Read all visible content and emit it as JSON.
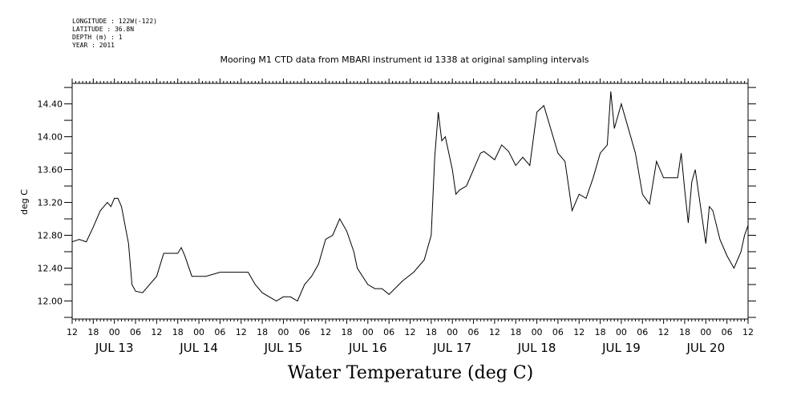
{
  "header": {
    "lines": [
      "LONGITUDE : 122W(-122)",
      "LATITUDE : 36.8N",
      "DEPTH (m) : 1",
      "YEAR : 2011"
    ]
  },
  "chart_data": {
    "type": "line",
    "title": "Mooring M1 CTD data from MBARI instrument id 1338 at original sampling intervals",
    "footer_title": "Water Temperature (deg C)",
    "ylabel": "deg C",
    "xlabel": "",
    "ylim": [
      11.78,
      14.65
    ],
    "yticks": [
      12.0,
      12.4,
      12.8,
      13.2,
      13.6,
      14.0,
      14.4
    ],
    "ytick_labels": [
      "12.00",
      "12.40",
      "12.80",
      "13.20",
      "13.60",
      "14.00",
      "14.40"
    ],
    "xlim": [
      "2011-07-12 12:00",
      "2011-07-20 12:00"
    ],
    "hour_tick_labels": [
      "12",
      "18",
      "00",
      "06",
      "12",
      "18",
      "00",
      "06",
      "12",
      "18",
      "00",
      "06",
      "12",
      "18",
      "00",
      "06",
      "12",
      "18",
      "00",
      "06",
      "12",
      "18",
      "00",
      "06",
      "12",
      "18",
      "00",
      "06",
      "12",
      "18",
      "00",
      "06",
      "12"
    ],
    "date_labels": [
      "JUL 13",
      "JUL 14",
      "JUL 15",
      "JUL 16",
      "JUL 17",
      "JUL 18",
      "JUL 19",
      "JUL 20"
    ],
    "grid": false,
    "series": [
      {
        "x": [
          "2011-07-12 12:00",
          "2011-07-12 14:00",
          "2011-07-12 16:00",
          "2011-07-12 18:00",
          "2011-07-12 20:00",
          "2011-07-12 21:00",
          "2011-07-12 22:00",
          "2011-07-12 23:00",
          "2011-07-13 00:00",
          "2011-07-13 01:00",
          "2011-07-13 02:00",
          "2011-07-13 04:00",
          "2011-07-13 05:00",
          "2011-07-13 06:00",
          "2011-07-13 08:00",
          "2011-07-13 12:00",
          "2011-07-13 14:00",
          "2011-07-13 18:00",
          "2011-07-13 19:00",
          "2011-07-13 20:00",
          "2011-07-13 22:00",
          "2011-07-14 02:00",
          "2011-07-14 06:00",
          "2011-07-14 10:00",
          "2011-07-14 14:00",
          "2011-07-14 16:00",
          "2011-07-14 18:00",
          "2011-07-14 22:00",
          "2011-07-15 00:00",
          "2011-07-15 02:00",
          "2011-07-15 04:00",
          "2011-07-15 06:00",
          "2011-07-15 08:00",
          "2011-07-15 10:00",
          "2011-07-15 12:00",
          "2011-07-15 14:00",
          "2011-07-15 16:00",
          "2011-07-15 18:00",
          "2011-07-15 20:00",
          "2011-07-15 21:00",
          "2011-07-16 00:00",
          "2011-07-16 02:00",
          "2011-07-16 04:00",
          "2011-07-16 06:00",
          "2011-07-16 10:00",
          "2011-07-16 13:00",
          "2011-07-16 16:00",
          "2011-07-16 18:00",
          "2011-07-16 19:00",
          "2011-07-16 20:00",
          "2011-07-16 21:00",
          "2011-07-16 22:00",
          "2011-07-17 00:00",
          "2011-07-17 01:00",
          "2011-07-17 02:00",
          "2011-07-17 04:00",
          "2011-07-17 08:00",
          "2011-07-17 09:00",
          "2011-07-17 12:00",
          "2011-07-17 14:00",
          "2011-07-17 16:00",
          "2011-07-17 18:00",
          "2011-07-17 20:00",
          "2011-07-17 22:00",
          "2011-07-18 00:00",
          "2011-07-18 02:00",
          "2011-07-18 06:00",
          "2011-07-18 08:00",
          "2011-07-18 10:00",
          "2011-07-18 12:00",
          "2011-07-18 14:00",
          "2011-07-18 16:00",
          "2011-07-18 18:00",
          "2011-07-18 20:00",
          "2011-07-18 21:00",
          "2011-07-18 22:00",
          "2011-07-19 00:00",
          "2011-07-19 02:00",
          "2011-07-19 04:00",
          "2011-07-19 06:00",
          "2011-07-19 08:00",
          "2011-07-19 10:00",
          "2011-07-19 12:00",
          "2011-07-19 14:00",
          "2011-07-19 16:00",
          "2011-07-19 17:00",
          "2011-07-19 18:00",
          "2011-07-19 19:00",
          "2011-07-19 20:00",
          "2011-07-19 21:00",
          "2011-07-20 00:00",
          "2011-07-20 01:00",
          "2011-07-20 02:00",
          "2011-07-20 04:00",
          "2011-07-20 06:00",
          "2011-07-20 08:00",
          "2011-07-20 10:00",
          "2011-07-20 11:00",
          "2011-07-20 12:00"
        ],
        "y": [
          12.72,
          12.75,
          12.72,
          12.9,
          13.1,
          13.15,
          13.2,
          13.15,
          13.25,
          13.25,
          13.15,
          12.7,
          12.2,
          12.12,
          12.1,
          12.3,
          12.58,
          12.58,
          12.65,
          12.55,
          12.3,
          12.3,
          12.35,
          12.35,
          12.35,
          12.2,
          12.1,
          12.0,
          12.05,
          12.05,
          12.0,
          12.2,
          12.3,
          12.45,
          12.75,
          12.8,
          13.0,
          12.85,
          12.6,
          12.4,
          12.2,
          12.15,
          12.15,
          12.08,
          12.25,
          12.35,
          12.5,
          12.8,
          13.75,
          14.3,
          13.95,
          14.0,
          13.6,
          13.3,
          13.35,
          13.4,
          13.8,
          13.82,
          13.72,
          13.9,
          13.82,
          13.65,
          13.75,
          13.65,
          14.3,
          14.38,
          13.8,
          13.7,
          13.1,
          13.3,
          13.25,
          13.5,
          13.8,
          13.9,
          14.55,
          14.1,
          14.4,
          14.1,
          13.8,
          13.3,
          13.18,
          13.7,
          13.5,
          13.5,
          13.5,
          13.8,
          13.35,
          12.95,
          13.45,
          13.6,
          12.7,
          13.15,
          13.1,
          12.75,
          12.55,
          12.4,
          12.6,
          12.8,
          12.92
        ]
      }
    ]
  }
}
